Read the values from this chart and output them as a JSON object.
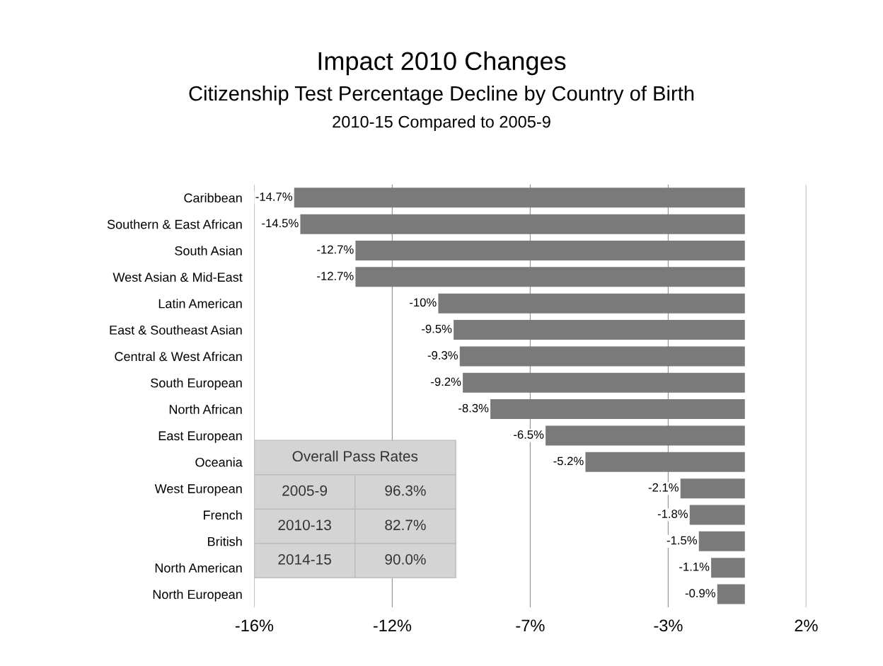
{
  "chart_data": {
    "type": "bar",
    "orientation": "horizontal",
    "title": "Impact 2010 Changes",
    "subtitle": "Citizenship Test Percentage Decline by Country of Birth\n2010-15 Compared to 2005-9",
    "categories": [
      "Caribbean",
      "Southern & East African",
      "South Asian",
      "West Asian & Mid-East",
      "Latin American",
      "East & Southeast Asian",
      "Central & West African",
      "South European",
      "North African",
      "East European",
      "Oceania",
      "West European",
      "French",
      "British",
      "North American",
      "North European"
    ],
    "values": [
      -14.7,
      -14.5,
      -12.7,
      -12.7,
      -10,
      -9.5,
      -9.3,
      -9.2,
      -8.3,
      -6.5,
      -5.2,
      -2.1,
      -1.8,
      -1.5,
      -1.1,
      -0.9
    ],
    "value_labels": [
      "-14.7%",
      "-14.5%",
      "-12.7%",
      "-12.7%",
      "-10%",
      "-9.5%",
      "-9.3%",
      "-9.2%",
      "-8.3%",
      "-6.5%",
      "-5.2%",
      "-2.1%",
      "-1.8%",
      "-1.5%",
      "-1.1%",
      "-0.9%"
    ],
    "color": "#7a7a7a",
    "xlim": [
      -16,
      2
    ],
    "xticks": [
      {
        "value": -16,
        "label": "-16%"
      },
      {
        "value": -11.5,
        "label": "-12%"
      },
      {
        "value": -7,
        "label": "-7%"
      },
      {
        "value": -2.5,
        "label": "-3%"
      },
      {
        "value": 2,
        "label": "2%"
      }
    ],
    "grid": "x",
    "annotations": [
      "Overall Pass Rates",
      "2005-9",
      "96.3%",
      "2010-13",
      "82.7%",
      "2014-15",
      "90.0%"
    ]
  }
}
